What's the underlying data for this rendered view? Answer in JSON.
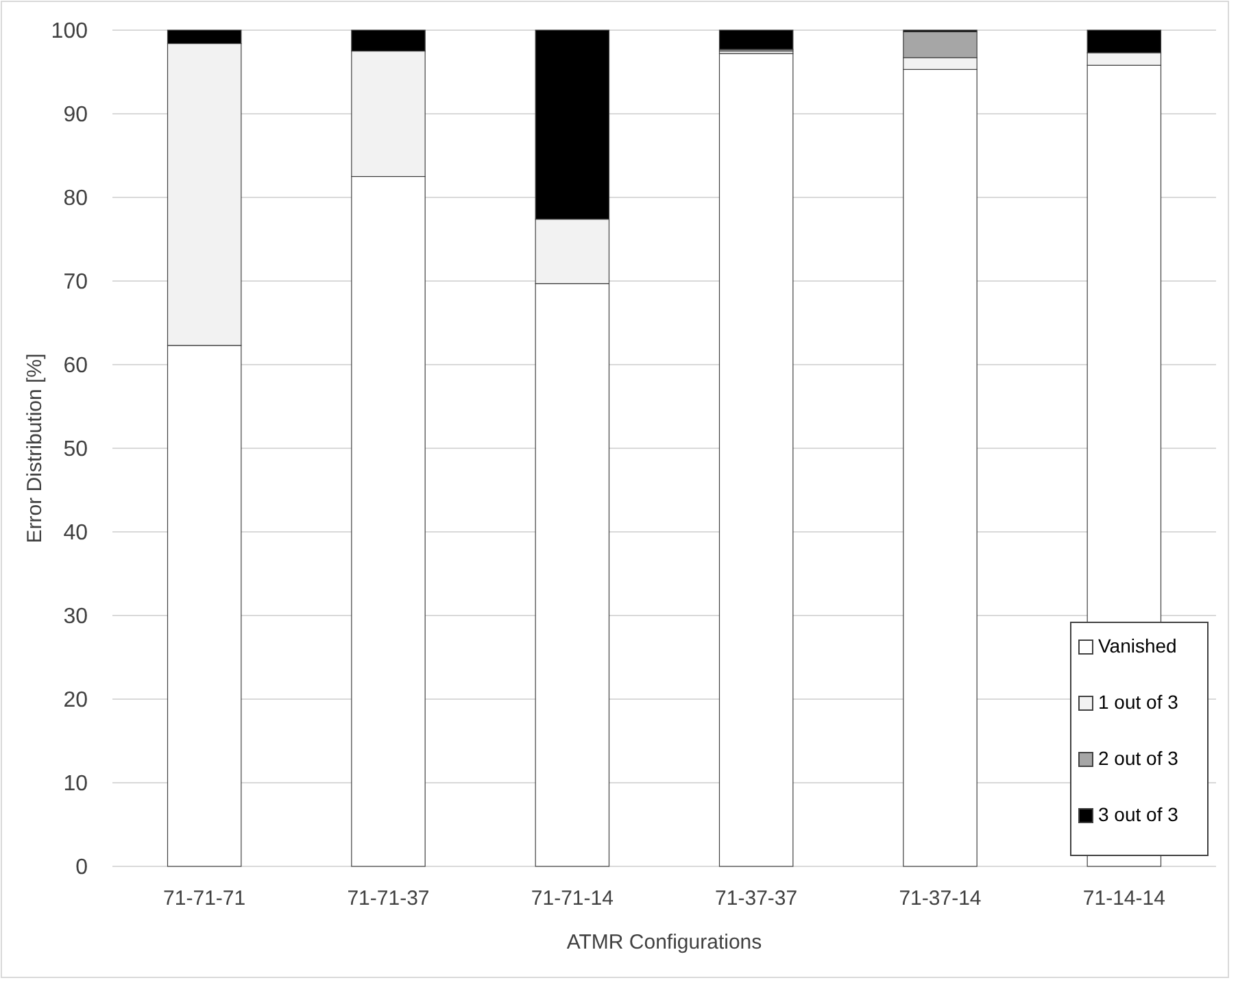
{
  "chart_data": {
    "type": "bar",
    "stacked": true,
    "xlabel": "ATMR Configurations",
    "ylabel": "Error Distribution [%]",
    "categories": [
      "71-71-71",
      "71-71-37",
      "71-71-14",
      "71-37-37",
      "71-37-14",
      "71-14-14"
    ],
    "series": [
      {
        "name": "Vanished",
        "color": "#ffffff",
        "values": [
          62.3,
          82.5,
          69.7,
          97.2,
          95.3,
          95.8
        ]
      },
      {
        "name": "1 out of 3",
        "color": "#f2f2f2",
        "values": [
          36.1,
          15.0,
          7.7,
          0.3,
          1.4,
          1.5
        ]
      },
      {
        "name": "2 out of 3",
        "color": "#a6a6a6",
        "values": [
          0,
          0,
          0,
          0.2,
          3.1,
          0
        ]
      },
      {
        "name": "3 out of 3",
        "color": "#000000",
        "values": [
          1.6,
          2.5,
          22.6,
          2.3,
          0.2,
          2.7
        ]
      }
    ],
    "ylim": [
      0,
      100
    ],
    "yticks": [
      0,
      10,
      20,
      30,
      40,
      50,
      60,
      70,
      80,
      90,
      100
    ],
    "grid": "y",
    "legend": "bottom right"
  }
}
